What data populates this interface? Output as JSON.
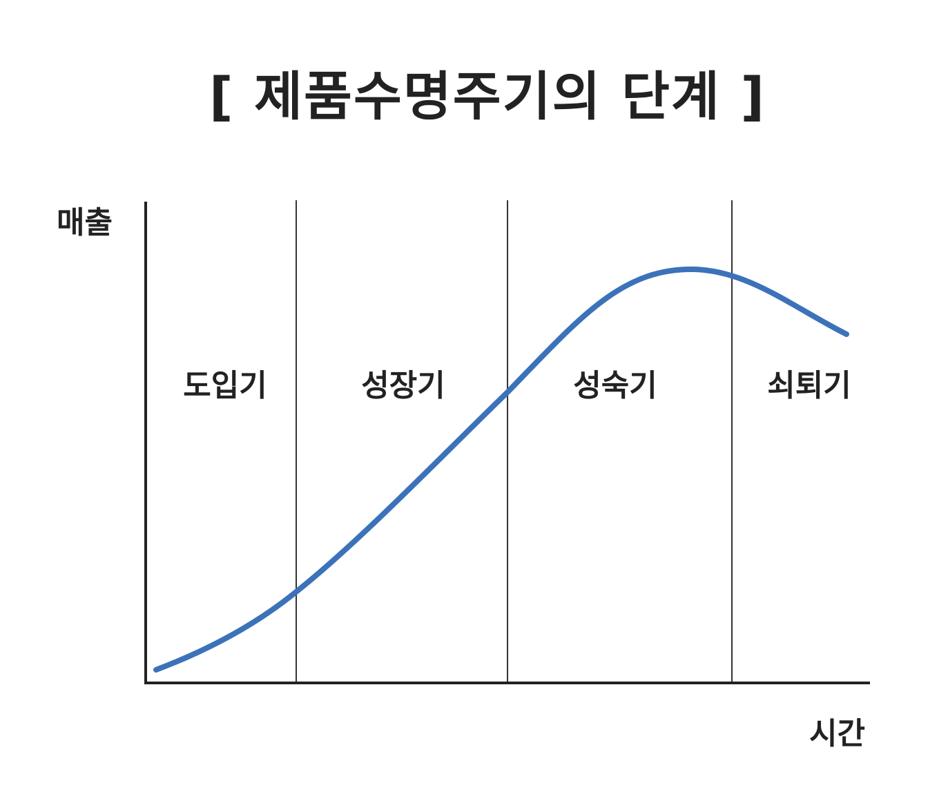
{
  "title": "[ 제품수명주기의 단계 ]",
  "axes": {
    "y_label": "매출",
    "x_label": "시간"
  },
  "stages": [
    {
      "label": "도입기"
    },
    {
      "label": "성장기"
    },
    {
      "label": "성숙기"
    },
    {
      "label": "쇠퇴기"
    }
  ],
  "colors": {
    "curve": "#3b72b9",
    "axis": "#222222",
    "divider": "#333333"
  }
}
